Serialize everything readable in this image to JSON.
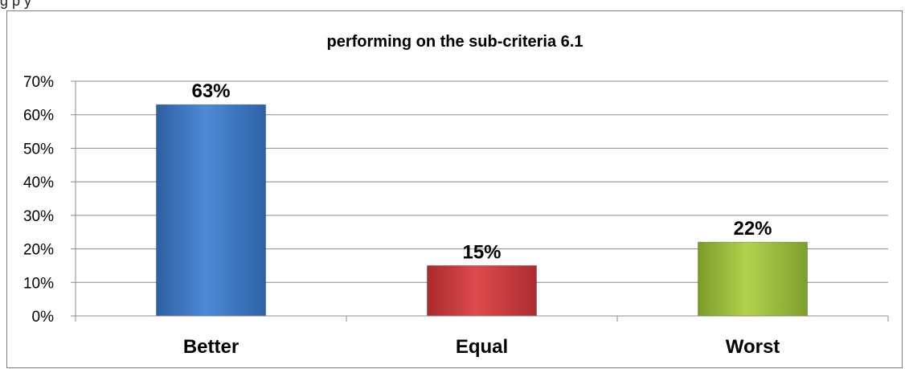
{
  "caption_fragment": "g                        p              y",
  "chart_data": {
    "type": "bar",
    "title": "performing on the sub-criteria 6.1",
    "categories": [
      "Better",
      "Equal",
      "Worst"
    ],
    "values": [
      63,
      15,
      22
    ],
    "data_labels": [
      "63%",
      "15%",
      "22%"
    ],
    "xlabel": "",
    "ylabel": "",
    "ylim": [
      0,
      70
    ],
    "yticks": [
      "0%",
      "10%",
      "20%",
      "30%",
      "40%",
      "50%",
      "60%",
      "70%"
    ],
    "grid": true,
    "legend": "none",
    "colors": [
      "#3f7bc6",
      "#c8393b",
      "#99bb3c"
    ]
  }
}
